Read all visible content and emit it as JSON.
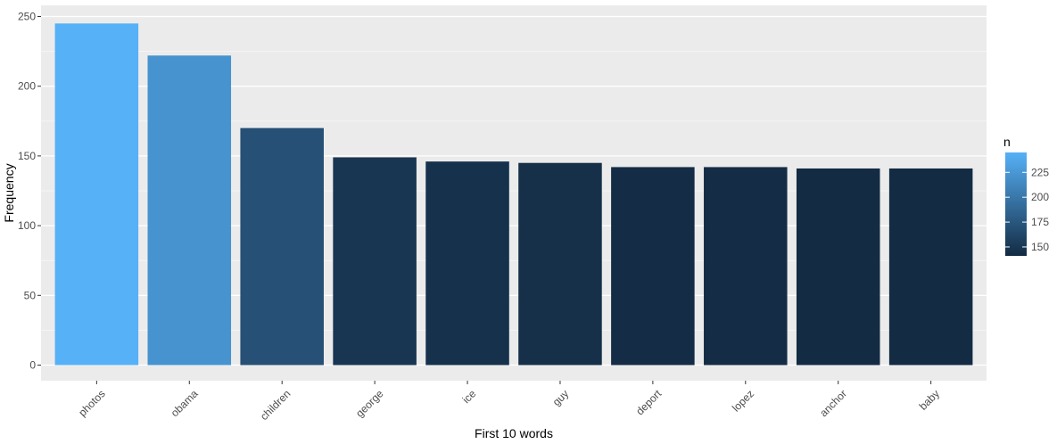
{
  "chart_data": {
    "type": "bar",
    "title": "",
    "xlabel": "First 10 words",
    "ylabel": "Frequency",
    "categories": [
      "photos",
      "obama",
      "children",
      "george",
      "ice",
      "guy",
      "deport",
      "lopez",
      "anchor",
      "baby"
    ],
    "values": [
      245,
      222,
      170,
      149,
      146,
      145,
      142,
      142,
      141,
      141
    ],
    "ylim": [
      0,
      250
    ],
    "yticks": [
      0,
      50,
      100,
      150,
      200,
      250
    ],
    "grid": true,
    "legend": {
      "title": "n",
      "placement": "right",
      "ticks": [
        150,
        175,
        200,
        225
      ],
      "range": [
        141,
        245
      ]
    },
    "colors": {
      "low": "#132B43",
      "high": "#56B1F7",
      "panel": "#EBEBEB",
      "grid_major": "#FFFFFF",
      "grid_minor": "#F5F5F5"
    }
  }
}
